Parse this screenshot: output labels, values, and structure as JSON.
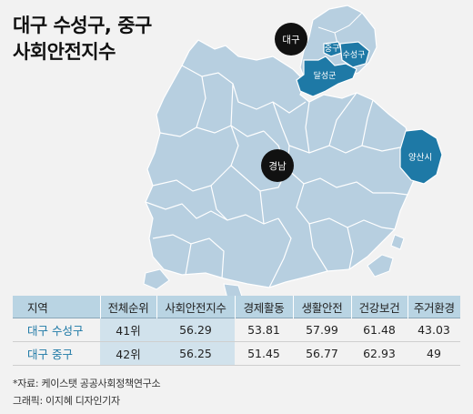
{
  "title": {
    "line1": "대구 수성구, 중구",
    "line2": "사회안전지수"
  },
  "map_labels": {
    "daegu": "대구",
    "jung_gu": "중구",
    "suseong_gu": "수성구",
    "dalseong_gun": "달성군",
    "gyeongnam": "경남",
    "yangsan": "양산시"
  },
  "colors": {
    "background": "#f2f2f2",
    "land": "#b7cfe0",
    "border": "#ffffff",
    "highlight": "#1e79a6",
    "marker": "#111111",
    "table_header": "#b9d4e3",
    "table_highlight": "#d1e2ec",
    "region_name": "#1e79a6"
  },
  "table": {
    "headers": [
      "지역",
      "전체순위",
      "사회안전지수",
      "경제활동",
      "생활안전",
      "건강보건",
      "주거환경"
    ],
    "rows": [
      [
        "대구 수성구",
        "41위",
        "56.29",
        "53.81",
        "57.99",
        "61.48",
        "43.03"
      ],
      [
        "대구 중구",
        "42위",
        "56.25",
        "51.45",
        "56.77",
        "62.93",
        "49"
      ]
    ]
  },
  "source": "*자료: 케이스탯 공공사회정책연구소",
  "credit": "그래픽: 이지혜 디자인기자"
}
